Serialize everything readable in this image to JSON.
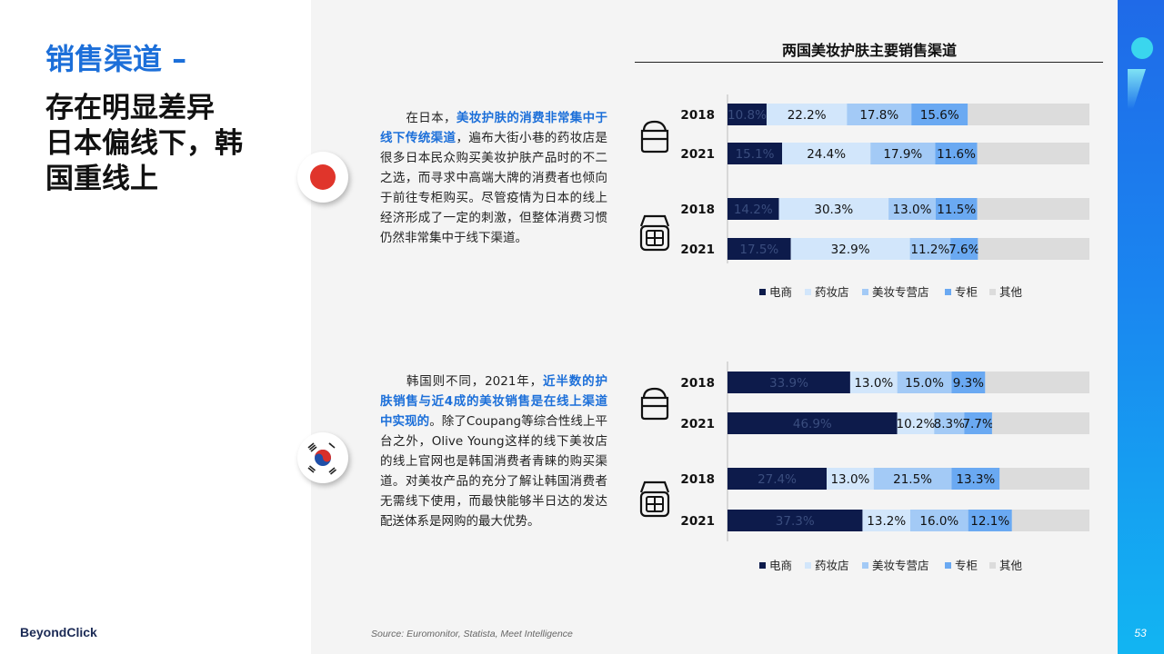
{
  "header": {
    "title": "销售渠道 –",
    "headline_lines": [
      "存在明显差异",
      "日本偏线下，韩",
      "国重线上"
    ]
  },
  "japan": {
    "para_1": "在日本，",
    "para_hl": "美妆护肤的消费非常集中于线下传统渠道",
    "para_2": "，遍布大街小巷的药妆店是很多日本民众购买美妆护肤产品时的不二之选，而寻求中高端大牌的消费者也倾向于前往专柜购买。尽管疫情为日本的线上经济形成了一定的刺激，但整体消费习惯仍然非常集中于线下渠道。"
  },
  "korea": {
    "para_1": "韩国则不同，2021年，",
    "para_hl": "近半数的护肤销售与近4成的美妆销售是在线上渠道中实现的",
    "para_2": "。除了Coupang等综合性线上平台之外，Olive Young这样的线下美妆店的线上官网也是韩国消费者青睐的购买渠道。对美妆产品的充分了解让韩国消费者无需线下使用，而最快能够半日达的发达配送体系是网购的最大优势。"
  },
  "chart_data": [
    {
      "type": "bar",
      "orientation": "horizontal",
      "stacked": true,
      "title": "两国美妆护肤主要销售渠道",
      "groups": [
        {
          "icon": "skincare-jar-icon",
          "categories": [
            "2018",
            "2021"
          ]
        },
        {
          "icon": "makeup-compact-icon",
          "categories": [
            "2018",
            "2021"
          ]
        }
      ],
      "categories": [
        "2018",
        "2021",
        "2018",
        "2021"
      ],
      "series": [
        {
          "name": "电商",
          "color": "#0d1b4b",
          "values": [
            10.8,
            15.1,
            14.2,
            17.5
          ],
          "labels": [
            "10.8%",
            "15.1%",
            "14.2%",
            "17.5%"
          ]
        },
        {
          "name": "药妆店",
          "color": "#d2e6fb",
          "values": [
            22.2,
            24.4,
            30.3,
            32.9
          ],
          "labels": [
            "22.2%",
            "24.4%",
            "30.3%",
            "32.9%"
          ]
        },
        {
          "name": "美妆专营店",
          "color": "#a3caf6",
          "values": [
            17.8,
            17.9,
            13.0,
            11.2
          ],
          "labels": [
            "17.8%",
            "17.9%",
            "13.0%",
            "11.2%"
          ]
        },
        {
          "name": "专柜",
          "color": "#6aa9f2",
          "values": [
            15.6,
            11.6,
            11.5,
            7.6
          ],
          "labels": [
            "15.6%",
            "11.6%",
            "11.5%",
            "7.6%"
          ]
        },
        {
          "name": "其他",
          "color": "#dcdcdc",
          "values": [
            33.6,
            31.0,
            31.0,
            30.8
          ],
          "labels": [
            "",
            "",
            "",
            ""
          ]
        }
      ],
      "xlim": [
        0,
        100
      ],
      "legend": "bottom",
      "grid": false
    },
    {
      "type": "bar",
      "orientation": "horizontal",
      "stacked": true,
      "groups": [
        {
          "icon": "skincare-jar-icon",
          "categories": [
            "2018",
            "2021"
          ]
        },
        {
          "icon": "makeup-compact-icon",
          "categories": [
            "2018",
            "2021"
          ]
        }
      ],
      "categories": [
        "2018",
        "2021",
        "2018",
        "2021"
      ],
      "series": [
        {
          "name": "电商",
          "color": "#0d1b4b",
          "values": [
            33.9,
            46.9,
            27.4,
            37.3
          ],
          "labels": [
            "33.9%",
            "46.9%",
            "27.4%",
            "37.3%"
          ]
        },
        {
          "name": "药妆店",
          "color": "#d2e6fb",
          "values": [
            13.0,
            10.2,
            13.0,
            13.2
          ],
          "labels": [
            "13.0%",
            "10.2%",
            "13.0%",
            "13.2%"
          ]
        },
        {
          "name": "美妆专营店",
          "color": "#a3caf6",
          "values": [
            15.0,
            8.3,
            21.5,
            16.0
          ],
          "labels": [
            "15.0%",
            "8.3%",
            "21.5%",
            "16.0%"
          ]
        },
        {
          "name": "专柜",
          "color": "#6aa9f2",
          "values": [
            9.3,
            7.7,
            13.3,
            12.1
          ],
          "labels": [
            "9.3%",
            "7.7%",
            "13.3%",
            "12.1%"
          ]
        },
        {
          "name": "其他",
          "color": "#dcdcdc",
          "values": [
            28.8,
            26.9,
            24.8,
            21.4
          ],
          "labels": [
            "",
            "",
            "",
            ""
          ]
        }
      ],
      "xlim": [
        0,
        100
      ],
      "legend": "bottom",
      "grid": false
    }
  ],
  "footer": {
    "source": "Source: Euromonitor, Statista, Meet Intelligence",
    "logo": "BeyondClick",
    "page": "53"
  }
}
